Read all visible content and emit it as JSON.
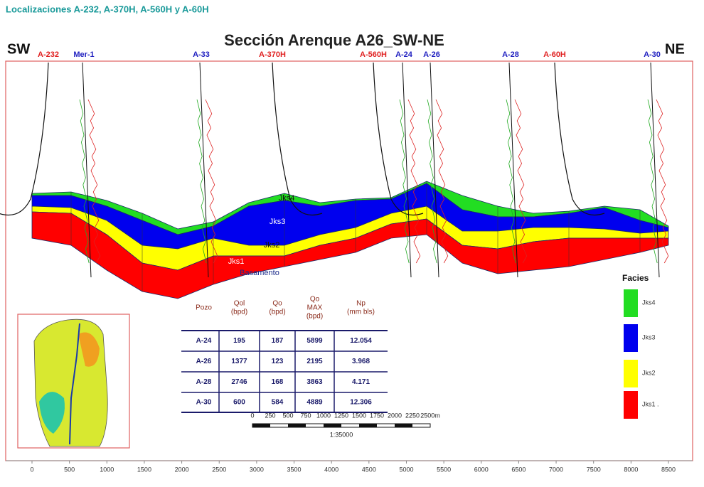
{
  "header": {
    "title": "Localizaciones A-232, A-370H, A-560H y A-60H"
  },
  "section": {
    "title": "Sección Arenque A26_SW-NE",
    "left_label": "SW",
    "right_label": "NE",
    "wells": [
      {
        "label": "A-232",
        "color": "#e02020"
      },
      {
        "label": "Mer-1",
        "color": "#2020c0"
      },
      {
        "label": "A-33",
        "color": "#2020c0"
      },
      {
        "label": "A-370H",
        "color": "#e02020"
      },
      {
        "label": "A-560H",
        "color": "#e02020"
      },
      {
        "label": "A-24",
        "color": "#2020c0"
      },
      {
        "label": "A-26",
        "color": "#2020c0"
      },
      {
        "label": "A-28",
        "color": "#2020c0"
      },
      {
        "label": "A-60H",
        "color": "#e02020"
      },
      {
        "label": "A-30",
        "color": "#2020c0"
      }
    ],
    "layer_labels": [
      "Jks4",
      "Jks3",
      "Jks2",
      "Jks1",
      "Basamento"
    ],
    "x_axis": [
      "0",
      "500",
      "1000",
      "1500",
      "2000",
      "2500",
      "3000",
      "3500",
      "4000",
      "4500",
      "5000",
      "5500",
      "6000",
      "6500",
      "7000",
      "7500",
      "8000",
      "8500"
    ]
  },
  "table": {
    "headers": [
      [
        "Pozo"
      ],
      [
        "Qol",
        "(bpd)"
      ],
      [
        "Qo",
        "(bpd)"
      ],
      [
        "Qo",
        "MAX",
        "(bpd)"
      ],
      [
        "Np",
        "(mm bls)"
      ]
    ],
    "rows": [
      [
        "A-24",
        "195",
        "187",
        "5899",
        "12.054"
      ],
      [
        "A-26",
        "1377",
        "123",
        "2195",
        "3.968"
      ],
      [
        "A-28",
        "2746",
        "168",
        "3863",
        "4.171"
      ],
      [
        "A-30",
        "600",
        "584",
        "4889",
        "12.306"
      ]
    ]
  },
  "scale": {
    "labels": [
      "0",
      "250",
      "500",
      "750",
      "1000",
      "1250",
      "1500",
      "1750",
      "2000",
      "2250",
      "2500m"
    ],
    "ratio": "1:35000"
  },
  "legend": {
    "title": "Facies",
    "items": [
      {
        "label": "Jks4",
        "color": "#22dd22"
      },
      {
        "label": "Jks3",
        "color": "#0000ee"
      },
      {
        "label": "Jks2",
        "color": "#ffff00"
      },
      {
        "label": "Jks1 .",
        "color": "#ff0000"
      }
    ]
  }
}
